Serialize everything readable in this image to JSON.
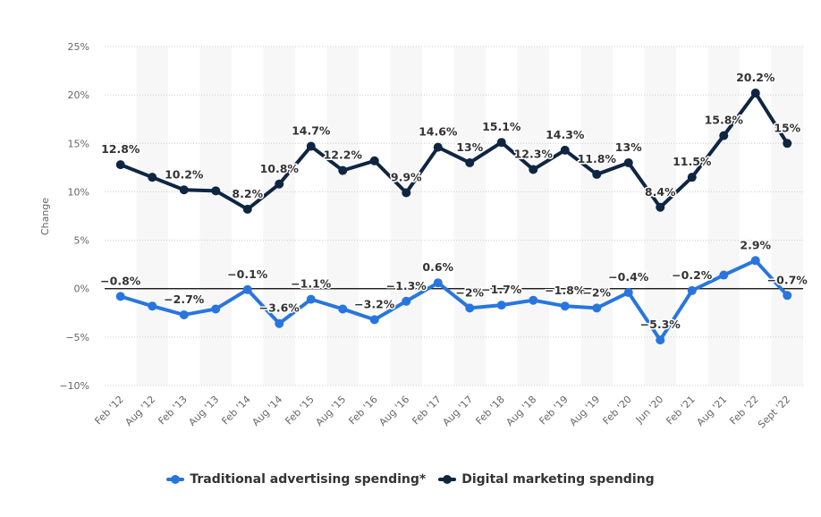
{
  "chart_data": {
    "type": "line",
    "title": "",
    "xlabel": "",
    "ylabel": "Change",
    "ylim": [
      -10,
      25
    ],
    "yticks": [
      25,
      20,
      15,
      10,
      5,
      0,
      -5,
      -10
    ],
    "ytick_labels": [
      "25%",
      "20%",
      "15%",
      "10%",
      "5%",
      "0%",
      "−5%",
      "−10%"
    ],
    "grid": true,
    "legend_position": "bottom",
    "categories": [
      "Feb '12",
      "Aug '12",
      "Feb '13",
      "Aug '13",
      "Feb '14",
      "Aug '14",
      "Feb '15",
      "Aug '15",
      "Feb '16",
      "Aug '16",
      "Feb '17",
      "Aug '17",
      "Feb '18",
      "Aug '18",
      "Feb '19",
      "Aug '19",
      "Feb '20",
      "Jun '20",
      "Feb '21",
      "Aug '21",
      "Feb '22",
      "Sept '22"
    ],
    "series": [
      {
        "name": "Traditional advertising spending*",
        "color": "#2876dd",
        "values": [
          -0.8,
          -1.8,
          -2.7,
          -2.1,
          -0.1,
          -3.6,
          -1.1,
          -2.1,
          -3.2,
          -1.3,
          0.6,
          -2.0,
          -1.7,
          -1.2,
          -1.8,
          -2.0,
          -0.4,
          -5.3,
          -0.2,
          1.4,
          2.9,
          -0.7
        ],
        "labels": [
          "−0.8%",
          "",
          "−2.7%",
          "",
          "−0.1%",
          "−3.6%",
          "−1.1%",
          "",
          "−3.2%",
          "−1.3%",
          "0.6%",
          "−2%",
          "−1.7%",
          "",
          "−1.8%",
          "−2%",
          "−0.4%",
          "−5.3%",
          "−0.2%",
          "",
          "2.9%",
          "−0.7%"
        ]
      },
      {
        "name": "Digital marketing spending",
        "color": "#0f2642",
        "values": [
          12.8,
          11.5,
          10.2,
          10.1,
          8.2,
          10.8,
          14.7,
          12.2,
          13.2,
          9.9,
          14.6,
          13.0,
          15.1,
          12.3,
          14.3,
          11.8,
          13.0,
          8.4,
          11.5,
          15.8,
          20.2,
          15.0
        ],
        "labels": [
          "12.8%",
          "",
          "10.2%",
          "",
          "8.2%",
          "10.8%",
          "14.7%",
          "12.2%",
          "",
          "9.9%",
          "14.6%",
          "13%",
          "15.1%",
          "12.3%",
          "14.3%",
          "11.8%",
          "13%",
          "8.4%",
          "11.5%",
          "15.8%",
          "20.2%",
          "15%"
        ]
      }
    ]
  },
  "legend": {
    "items": [
      {
        "label": "Traditional advertising spending*",
        "color": "#2876dd"
      },
      {
        "label": "Digital marketing spending",
        "color": "#0f2642"
      }
    ]
  }
}
